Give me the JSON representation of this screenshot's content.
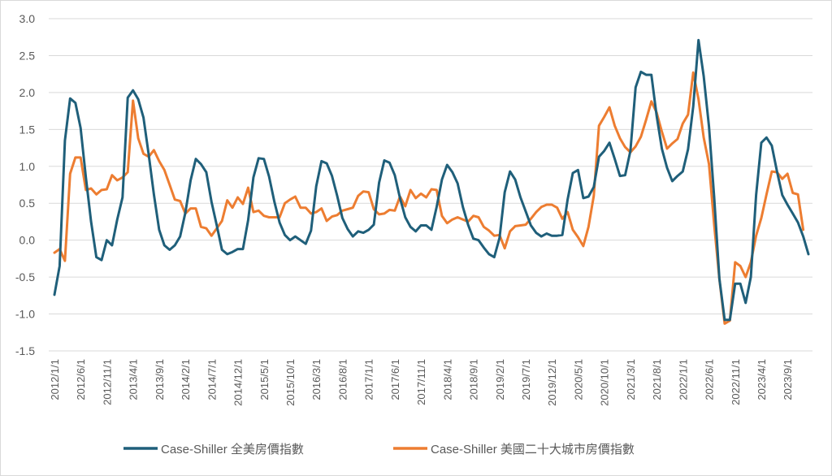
{
  "chart_data": {
    "type": "line",
    "title": "",
    "xlabel": "",
    "ylabel": "",
    "ylim": [
      -1.5,
      3.0
    ],
    "yticks": [
      3.0,
      2.5,
      2.0,
      1.5,
      1.0,
      0.5,
      0.0,
      -0.5,
      -1.0,
      -1.5
    ],
    "ytick_labels": [
      "3.0",
      "2.5",
      "2.0",
      "1.5",
      "1.0",
      "0.5",
      "0.0",
      "-0.5",
      "-1.0",
      "-1.5"
    ],
    "xtick_labels": [
      "2012/1/1",
      "2012/6/1",
      "2012/11/1",
      "2013/4/1",
      "2013/9/1",
      "2014/2/1",
      "2014/7/1",
      "2014/12/1",
      "2015/5/1",
      "2015/10/1",
      "2016/3/1",
      "2016/8/1",
      "2017/1/1",
      "2017/6/1",
      "2017/11/1",
      "2018/4/1",
      "2018/9/1",
      "2019/2/1",
      "2019/7/1",
      "2019/12/1",
      "2020/5/1",
      "2020/10/1",
      "2021/3/1",
      "2021/8/1",
      "2022/1/1",
      "2022/6/1",
      "2022/11/1",
      "2023/4/1",
      "2023/9/1"
    ],
    "x_start": "2012/1/1",
    "x_step": "1 month",
    "grid": true,
    "legend_position": "bottom",
    "colors": {
      "national": "#1f5f7a",
      "twenty_city": "#ed7d31",
      "grid": "#d9d9d9",
      "text": "#595959"
    },
    "series": [
      {
        "name": "Case-Shiller 全美房價指數",
        "values": [
          -0.74,
          -0.35,
          1.35,
          1.92,
          1.86,
          1.52,
          0.85,
          0.25,
          -0.23,
          -0.27,
          0.0,
          -0.07,
          0.28,
          0.58,
          1.93,
          2.03,
          1.91,
          1.66,
          1.16,
          0.62,
          0.14,
          -0.07,
          -0.13,
          -0.07,
          0.05,
          0.37,
          0.81,
          1.1,
          1.03,
          0.92,
          0.52,
          0.2,
          -0.13,
          -0.19,
          -0.16,
          -0.12,
          -0.12,
          0.27,
          0.85,
          1.11,
          1.1,
          0.86,
          0.52,
          0.24,
          0.07,
          0.0,
          0.05,
          0.0,
          -0.05,
          0.13,
          0.73,
          1.07,
          1.04,
          0.87,
          0.6,
          0.3,
          0.15,
          0.05,
          0.12,
          0.1,
          0.14,
          0.21,
          0.78,
          1.08,
          1.05,
          0.88,
          0.57,
          0.31,
          0.18,
          0.12,
          0.2,
          0.2,
          0.14,
          0.45,
          0.82,
          1.02,
          0.92,
          0.77,
          0.45,
          0.21,
          0.02,
          0.0,
          -0.1,
          -0.19,
          -0.23,
          0.03,
          0.65,
          0.93,
          0.82,
          0.58,
          0.39,
          0.2,
          0.1,
          0.05,
          0.09,
          0.06,
          0.06,
          0.07,
          0.55,
          0.91,
          0.95,
          0.57,
          0.59,
          0.72,
          1.13,
          1.21,
          1.32,
          1.1,
          0.87,
          0.88,
          1.21,
          2.07,
          2.28,
          2.24,
          2.24,
          1.69,
          1.24,
          0.98,
          0.8,
          0.87,
          0.93,
          1.23,
          1.81,
          2.71,
          2.22,
          1.54,
          0.58,
          -0.52,
          -1.08,
          -1.08,
          -0.59,
          -0.59,
          -0.85,
          -0.5,
          0.61,
          1.32,
          1.39,
          1.28,
          0.93,
          0.61,
          0.48,
          0.36,
          0.24,
          0.05,
          -0.19
        ]
      },
      {
        "name": "Case-Shiller 美國二十大城市房價指數",
        "values": [
          -0.17,
          -0.12,
          -0.28,
          0.9,
          1.12,
          1.12,
          0.68,
          0.7,
          0.62,
          0.68,
          0.69,
          0.88,
          0.81,
          0.85,
          0.92,
          1.89,
          1.38,
          1.17,
          1.13,
          1.22,
          1.07,
          0.95,
          0.75,
          0.55,
          0.53,
          0.36,
          0.43,
          0.43,
          0.18,
          0.16,
          0.06,
          0.16,
          0.26,
          0.54,
          0.44,
          0.58,
          0.49,
          0.71,
          0.38,
          0.4,
          0.33,
          0.31,
          0.31,
          0.31,
          0.5,
          0.55,
          0.59,
          0.44,
          0.44,
          0.36,
          0.38,
          0.43,
          0.26,
          0.32,
          0.34,
          0.4,
          0.42,
          0.44,
          0.6,
          0.66,
          0.65,
          0.42,
          0.35,
          0.36,
          0.41,
          0.4,
          0.59,
          0.46,
          0.68,
          0.57,
          0.63,
          0.58,
          0.69,
          0.68,
          0.33,
          0.23,
          0.28,
          0.31,
          0.28,
          0.25,
          0.33,
          0.31,
          0.18,
          0.13,
          0.06,
          0.07,
          -0.11,
          0.12,
          0.19,
          0.2,
          0.21,
          0.29,
          0.38,
          0.45,
          0.48,
          0.48,
          0.44,
          0.29,
          0.38,
          0.14,
          0.04,
          -0.08,
          0.18,
          0.6,
          1.55,
          1.67,
          1.8,
          1.55,
          1.38,
          1.26,
          1.19,
          1.27,
          1.4,
          1.63,
          1.88,
          1.73,
          1.47,
          1.24,
          1.31,
          1.37,
          1.58,
          1.7,
          2.27,
          1.91,
          1.39,
          1.03,
          0.21,
          -0.53,
          -1.13,
          -1.09,
          -0.3,
          -0.35,
          -0.5,
          -0.3,
          0.06,
          0.3,
          0.62,
          0.93,
          0.92,
          0.83,
          0.9,
          0.64,
          0.62,
          0.14
        ]
      }
    ]
  }
}
